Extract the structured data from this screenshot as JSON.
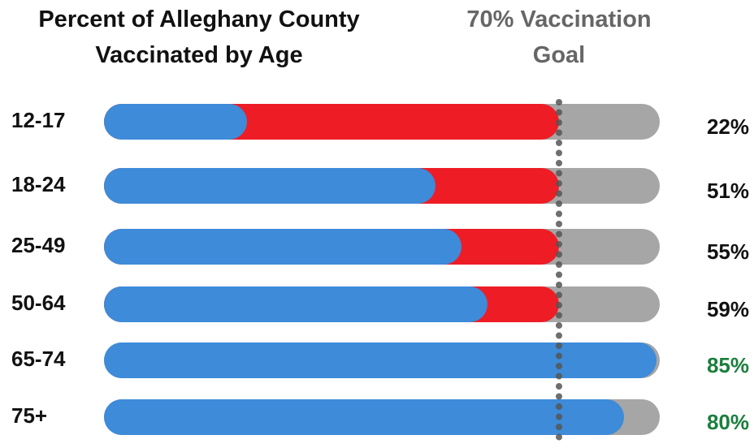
{
  "chart_data": {
    "type": "bar",
    "orientation": "horizontal",
    "title": "Percent of Alleghany County Vaccinated by Age",
    "categories": [
      "12-17",
      "18-24",
      "25-49",
      "50-64",
      "65-74",
      "75+"
    ],
    "values": [
      22,
      51,
      55,
      59,
      85,
      80
    ],
    "value_labels": [
      "22%",
      "51%",
      "55%",
      "59%",
      "85%",
      "80%"
    ],
    "color": "#3d8bd9",
    "goal": {
      "value": 70,
      "label": "70% Vaccination Goal"
    },
    "gap_color": "#ee1c25",
    "track_color": "#a6a6a6",
    "label_color": "#111111",
    "above_goal_label_color": "#1a7f3c",
    "goal_color": "#555555",
    "xlim": [
      0,
      85
    ]
  }
}
